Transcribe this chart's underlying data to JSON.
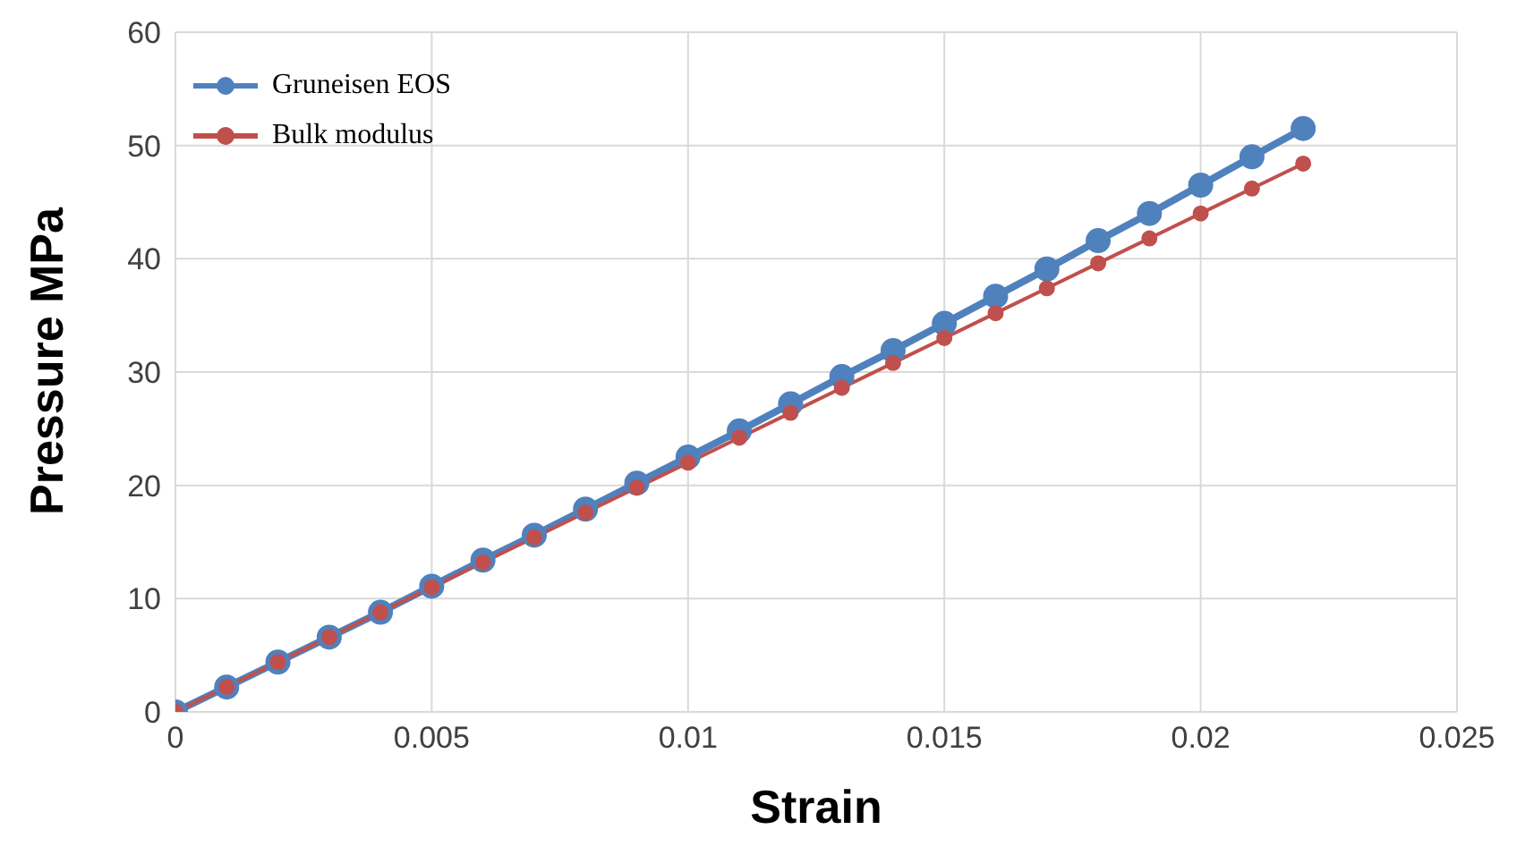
{
  "chart_data": {
    "type": "line",
    "xlabel": "Strain",
    "ylabel": "Pressure MPa",
    "x": [
      0,
      0.001,
      0.002,
      0.003,
      0.004,
      0.005,
      0.006,
      0.007,
      0.008,
      0.009,
      0.01,
      0.011,
      0.012,
      0.013,
      0.014,
      0.015,
      0.016,
      0.017,
      0.018,
      0.019,
      0.02,
      0.021,
      0.022
    ],
    "series": [
      {
        "name": "Gruneisen EOS",
        "color": "#4f81bd",
        "values": [
          0,
          2.2,
          4.4,
          6.6,
          8.8,
          11.1,
          13.4,
          15.6,
          17.9,
          20.2,
          22.5,
          24.8,
          27.2,
          29.6,
          31.9,
          34.3,
          36.7,
          39.1,
          41.6,
          44.0,
          46.5,
          49.0,
          51.5
        ]
      },
      {
        "name": "Bulk modulus",
        "color": "#c0504d",
        "values": [
          0,
          2.2,
          4.4,
          6.6,
          8.8,
          11.0,
          13.2,
          15.4,
          17.6,
          19.8,
          22.0,
          24.2,
          26.4,
          28.6,
          30.8,
          33.0,
          35.2,
          37.4,
          39.6,
          41.8,
          44.0,
          46.2,
          48.4
        ]
      }
    ],
    "xlim": [
      0,
      0.025
    ],
    "xticks": [
      0,
      0.005,
      0.01,
      0.015,
      0.02,
      0.025
    ],
    "ylim": [
      0,
      60
    ],
    "yticks": [
      0,
      10,
      20,
      30,
      40,
      50,
      60
    ],
    "grid": true,
    "legend": "top left",
    "marker": "circle",
    "line_style": "solid"
  }
}
